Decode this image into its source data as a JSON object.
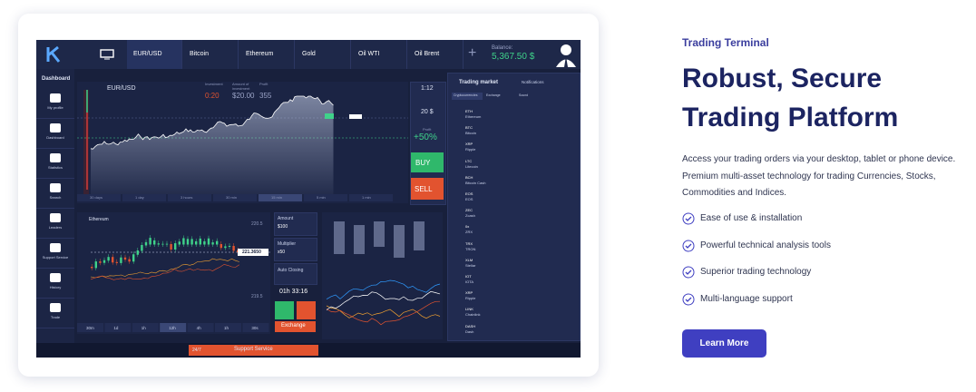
{
  "terminal": {
    "tabs": [
      "EUR/USD",
      "Bitcoin",
      "Ethereum",
      "Gold",
      "Oil WTI",
      "Oil Brent"
    ],
    "balance_label": "Balance:",
    "balance": "5,367.50 $",
    "sidebar_title": "Dashboard",
    "sidebar": [
      "My profile",
      "Dashboard",
      "Statistics",
      "Search",
      "Leaders",
      "Support Service",
      "History",
      "Trade"
    ],
    "main_chart": {
      "symbol": "EUR/USD",
      "stats": [
        {
          "label": "Investment",
          "value": "0:20"
        },
        {
          "label": "Amount of investment",
          "value": "$20.00"
        },
        {
          "label": "Profit",
          "value": "355"
        }
      ],
      "periods": [
        "30 days",
        "1 day",
        "3 hours",
        "30 min",
        "15 min",
        "5 min",
        "1 min"
      ]
    },
    "trade_panel": {
      "ratio": "1:12",
      "amount": "20 $",
      "profit_label": "Profit",
      "profit": "+50%",
      "buy": "BUY",
      "sell": "SELL"
    },
    "market": {
      "title": "Trading market",
      "notifications": "Notifications",
      "tabs": [
        "Cryptocurrencies",
        "Exchange",
        "Sound"
      ],
      "rows": [
        {
          "symbol": "ETH",
          "name": "Ethereum"
        },
        {
          "symbol": "BTC",
          "name": "Bitcoin"
        },
        {
          "symbol": "XRP",
          "name": "Ripple"
        },
        {
          "symbol": "LTC",
          "name": "Litecoin"
        },
        {
          "symbol": "BCH",
          "name": "Bitcoin Cash"
        },
        {
          "symbol": "EOS",
          "name": "EOS"
        },
        {
          "symbol": "ZEC",
          "name": "Zcash"
        },
        {
          "symbol": "0x",
          "name": "ZRX"
        },
        {
          "symbol": "TRX",
          "name": "TRON"
        },
        {
          "symbol": "XLM",
          "name": "Stellar"
        },
        {
          "symbol": "IOT",
          "name": "IOTA"
        },
        {
          "symbol": "XRP",
          "name": "Ripple"
        },
        {
          "symbol": "LINK",
          "name": "Chainlink"
        },
        {
          "symbol": "DASH",
          "name": "Dash"
        }
      ]
    },
    "lower_chart": {
      "symbol": "Ethereum",
      "price_tag": "221.3650",
      "levels": [
        "220.5",
        "219.5"
      ],
      "periods": [
        "30m",
        "1d",
        "1h",
        "12h",
        "4h",
        "1h",
        "30s"
      ]
    },
    "order": {
      "amount_label": "Amount",
      "amount": "$100",
      "multiplier_label": "Multiplier",
      "multiplier": "x50",
      "auto_closing": "Auto Closing",
      "timer": "01h 33:16",
      "exchange": "Exchange"
    },
    "footer": {
      "hours": "24/7",
      "support": "Support Service"
    }
  },
  "hero": {
    "eyebrow": "Trading Terminal",
    "title_lines": [
      "Robust, Secure",
      "Trading Platform"
    ],
    "description": "Access your trading orders via your desktop, tablet or phone device. Premium multi-asset technology for trading Currencies, Stocks, Commodities and Indices.",
    "features": [
      "Ease of use & installation",
      "Powerful technical analysis tools",
      "Superior trading technology",
      "Multi-language support"
    ],
    "button": "Learn More"
  }
}
